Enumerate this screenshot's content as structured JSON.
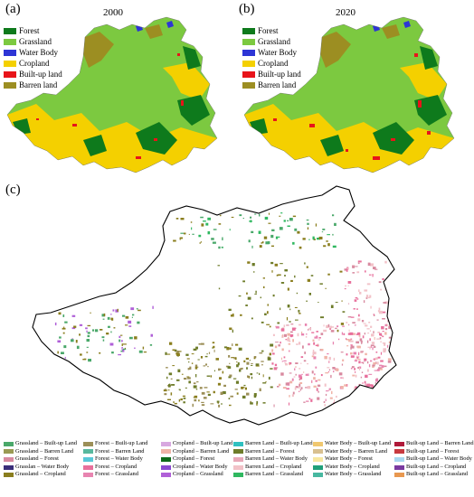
{
  "panels": {
    "a": {
      "label": "(a)",
      "year": "2000"
    },
    "b": {
      "label": "(b)",
      "year": "2020"
    },
    "c": {
      "label": "(c)"
    }
  },
  "landcover_legend": [
    {
      "label": "Forest",
      "color": "#0e7a1c"
    },
    {
      "label": "Grassland",
      "color": "#7cc940"
    },
    {
      "label": "Water Body",
      "color": "#2d35d6"
    },
    {
      "label": "Cropland",
      "color": "#f4d000"
    },
    {
      "label": "Built-up land",
      "color": "#e8141a"
    },
    {
      "label": "Barren land",
      "color": "#9c8e22"
    }
  ],
  "transition_legend": {
    "columns": [
      [
        {
          "label": "Grassland – Built-up Land",
          "color": "#4aa86a"
        },
        {
          "label": "Grassland – Barren Land",
          "color": "#9a9a54"
        },
        {
          "label": "Grassland – Forest",
          "color": "#d88aa0"
        },
        {
          "label": "Grasslan – Water Body",
          "color": "#3a2e7a"
        },
        {
          "label": "Grassland – Cropland",
          "color": "#8a7e1e"
        }
      ],
      [
        {
          "label": "Forest – Built-up Land",
          "color": "#9c8f58"
        },
        {
          "label": "Forest – Barren Land",
          "color": "#58b89e"
        },
        {
          "label": "Forest – Water Body",
          "color": "#58c8d8"
        },
        {
          "label": "Forest – Cropland",
          "color": "#e8709c"
        },
        {
          "label": "Forest – Grassland",
          "color": "#e884b0"
        }
      ],
      [
        {
          "label": "Cropland – Built-up Land",
          "color": "#d8a8e0"
        },
        {
          "label": "Cropland – Barren Land",
          "color": "#f0b4a8"
        },
        {
          "label": "Cropland – Forest",
          "color": "#0e6a1a"
        },
        {
          "label": "Cropland – Water Body",
          "color": "#8a4ad0"
        },
        {
          "label": "Cropland – Grassland",
          "color": "#b060d8"
        }
      ],
      [
        {
          "label": "Barren Land – Built-up Land",
          "color": "#30c0c0"
        },
        {
          "label": "Barren Land – Forest",
          "color": "#6e7c2a"
        },
        {
          "label": "Barren Land – Water Body",
          "color": "#e8a8b8"
        },
        {
          "label": "Barren Land – Cropland",
          "color": "#f2c2c8"
        },
        {
          "label": "Barren Land – Grassland",
          "color": "#30b860"
        }
      ],
      [
        {
          "label": "Water Body – Built-up Land",
          "color": "#f0c870"
        },
        {
          "label": "Water Body – Barren Land",
          "color": "#d8c090"
        },
        {
          "label": "Water Body – Forest",
          "color": "#f8e8a0"
        },
        {
          "label": "Water Body – Cropland",
          "color": "#20a07a"
        },
        {
          "label": "Water Body – Grassland",
          "color": "#48b8a0"
        }
      ],
      [
        {
          "label": "Built-up Land – Barren Land",
          "color": "#b01a3a"
        },
        {
          "label": "Built-up Land – Forest",
          "color": "#c83a40"
        },
        {
          "label": "Built-up Land – Water Body",
          "color": "#a8d8f0"
        },
        {
          "label": "Built-up Land – Cropland",
          "color": "#7a3aa0"
        },
        {
          "label": "Built-up Land – Grassland",
          "color": "#e89850"
        }
      ]
    ]
  }
}
